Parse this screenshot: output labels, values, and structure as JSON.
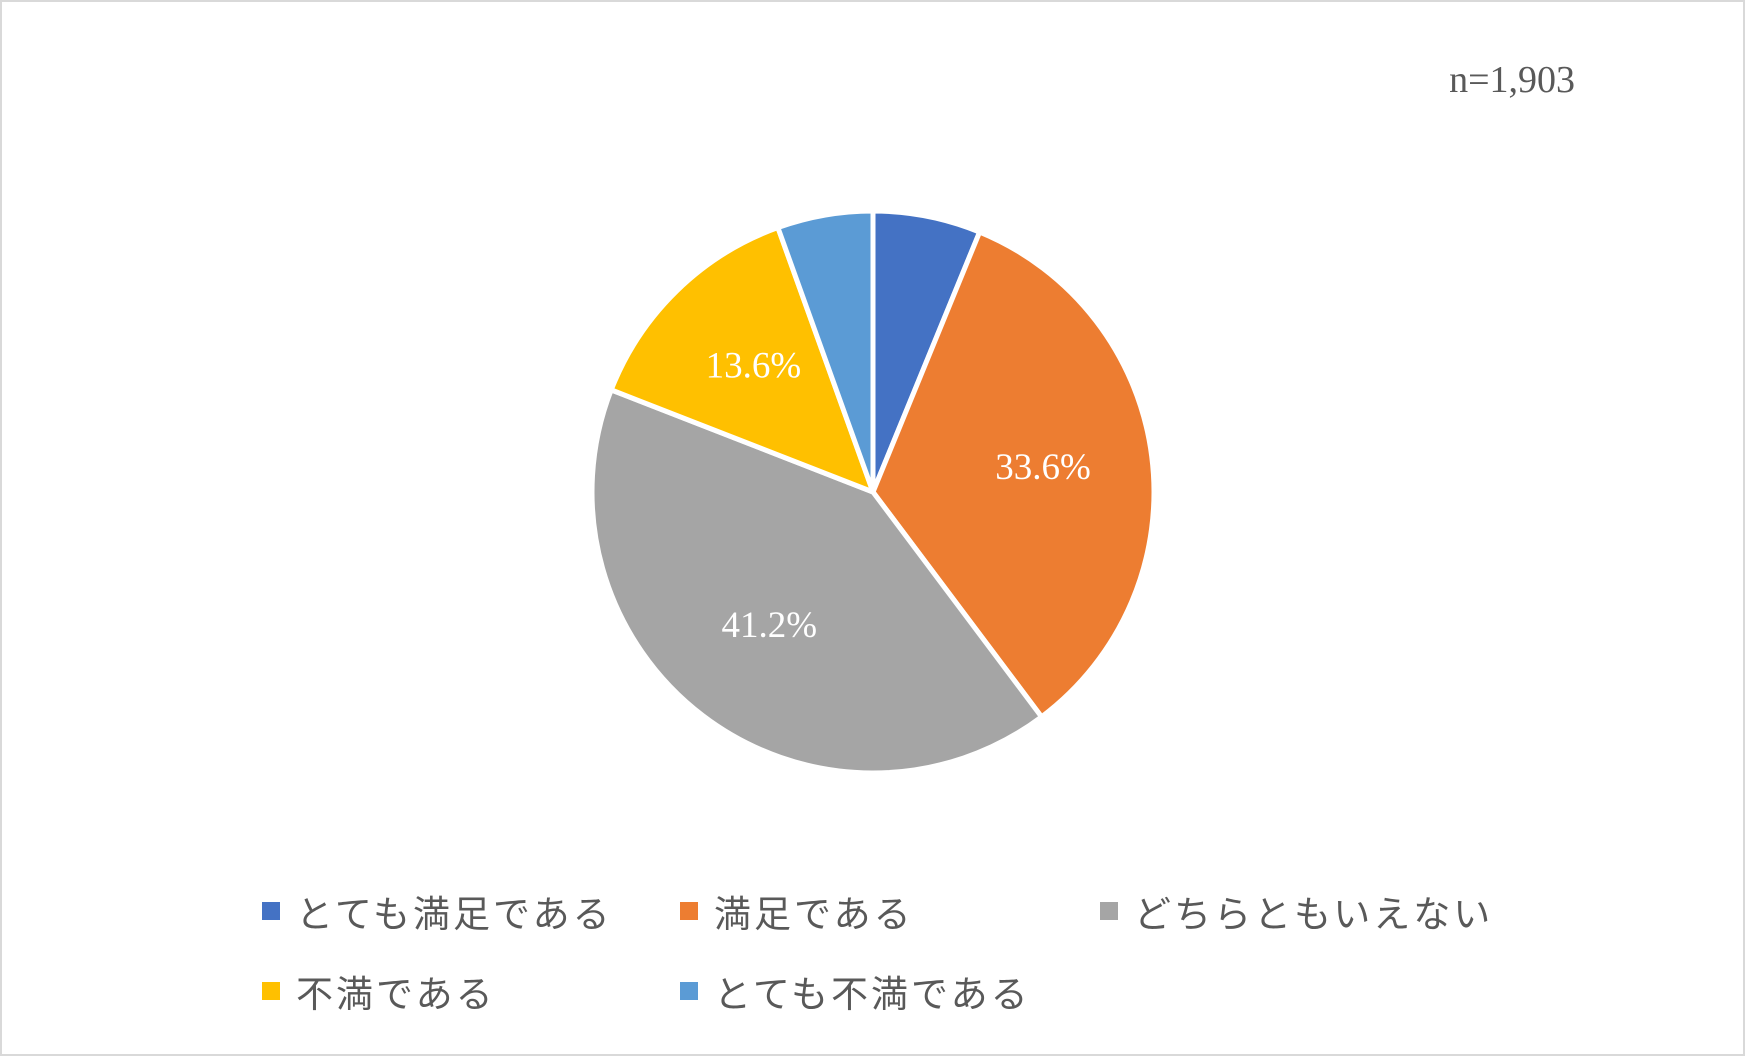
{
  "sample_size": "n=1,903",
  "chart_data": {
    "type": "pie",
    "categories": [
      "とても満足である",
      "満足である",
      "どちらともいえない",
      "不満である",
      "とても不満である"
    ],
    "values": [
      6.2,
      33.6,
      41.2,
      13.6,
      5.5
    ],
    "data_labels": [
      "",
      "33.6%",
      "41.2%",
      "13.6%",
      ""
    ],
    "colors": [
      "#4472C4",
      "#ED7D31",
      "#A5A5A5",
      "#FFC000",
      "#5B9BD5"
    ],
    "legend_position": "bottom",
    "start_angle": "12 o'clock",
    "direction": "clockwise"
  },
  "legend": {
    "items": [
      {
        "label": "とても満足である",
        "color": "#4472C4"
      },
      {
        "label": "満足である",
        "color": "#ED7D31"
      },
      {
        "label": "どちらともいえない",
        "color": "#A5A5A5"
      },
      {
        "label": "不満である",
        "color": "#FFC000"
      },
      {
        "label": "とても不満である",
        "color": "#5B9BD5"
      }
    ]
  }
}
